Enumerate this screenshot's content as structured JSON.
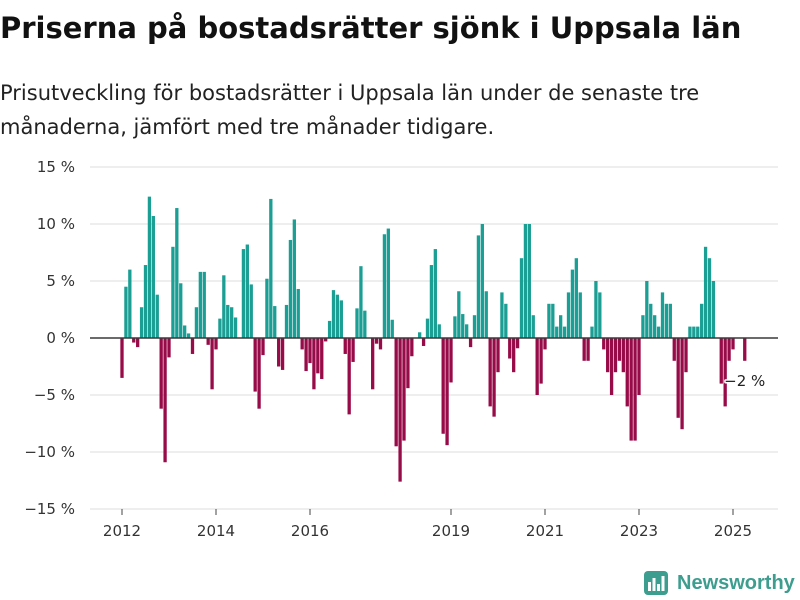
{
  "title": "Priserna på bostadsrätter sjönk i Uppsala län",
  "subtitle": "Prisutveckling för bostadsrätter i Uppsala län under de senaste tre månaderna, jämfört med tre månader tidigare.",
  "logo": {
    "text": "Newsworthy",
    "icon": "newsworthy-logo-icon"
  },
  "colors": {
    "positive": "#1b9e94",
    "negative": "#980b49",
    "logo": "#3d9d8f",
    "title": "#111111",
    "text": "#222222",
    "zero_line": "#3a3a3a",
    "grid": "#dedede"
  },
  "chart_data": {
    "type": "bar",
    "title": "Priserna på bostadsrätter sjönk i Uppsala län",
    "xlabel": "",
    "ylabel": "",
    "grid": true,
    "ylim": [
      -15,
      15
    ],
    "y_ticks": [
      {
        "value": 15,
        "label": "15 %"
      },
      {
        "value": 10,
        "label": "10 %"
      },
      {
        "value": 5,
        "label": "5 %"
      },
      {
        "value": 0,
        "label": "0 %"
      },
      {
        "value": -5,
        "label": "−5 %"
      },
      {
        "value": -10,
        "label": "−10 %"
      },
      {
        "value": -15,
        "label": "−15 %"
      }
    ],
    "x_ticks": [
      {
        "value": "2012-01",
        "label": "2012"
      },
      {
        "value": "2014-01",
        "label": "2014"
      },
      {
        "value": "2016-01",
        "label": "2016"
      },
      {
        "value": "2019-01",
        "label": "2019"
      },
      {
        "value": "2021-01",
        "label": "2021"
      },
      {
        "value": "2023-01",
        "label": "2023"
      },
      {
        "value": "2025-01",
        "label": "2025"
      }
    ],
    "x": [
      "2012-01",
      "2012-02",
      "2012-03",
      "2012-04",
      "2012-05",
      "2012-06",
      "2012-07",
      "2012-08",
      "2012-09",
      "2012-10",
      "2012-11",
      "2012-12",
      "2013-01",
      "2013-02",
      "2013-03",
      "2013-04",
      "2013-05",
      "2013-06",
      "2013-07",
      "2013-08",
      "2013-09",
      "2013-10",
      "2013-11",
      "2013-12",
      "2014-01",
      "2014-02",
      "2014-03",
      "2014-04",
      "2014-05",
      "2014-06",
      "2014-07",
      "2014-08",
      "2014-09",
      "2014-10",
      "2014-11",
      "2014-12",
      "2015-01",
      "2015-02",
      "2015-03",
      "2015-04",
      "2015-05",
      "2015-06",
      "2015-07",
      "2015-08",
      "2015-09",
      "2015-10",
      "2015-11",
      "2015-12",
      "2016-01",
      "2016-02",
      "2016-03",
      "2016-04",
      "2016-05",
      "2016-06",
      "2016-07",
      "2016-08",
      "2016-09",
      "2016-10",
      "2016-11",
      "2016-12",
      "2017-01",
      "2017-02",
      "2017-03",
      "2017-04",
      "2017-05",
      "2017-06",
      "2017-07",
      "2017-08",
      "2017-09",
      "2017-10",
      "2017-11",
      "2017-12",
      "2018-01",
      "2018-02",
      "2018-03",
      "2018-04",
      "2018-05",
      "2018-06",
      "2018-07",
      "2018-08",
      "2018-09",
      "2018-10",
      "2018-11",
      "2018-12",
      "2019-01",
      "2019-02",
      "2019-03",
      "2019-04",
      "2019-05",
      "2019-06",
      "2019-07",
      "2019-08",
      "2019-09",
      "2019-10",
      "2019-11",
      "2019-12",
      "2020-01",
      "2020-02",
      "2020-03",
      "2020-04",
      "2020-05",
      "2020-06",
      "2020-07",
      "2020-08",
      "2020-09",
      "2020-10",
      "2020-11",
      "2020-12",
      "2021-01",
      "2021-02",
      "2021-03",
      "2021-04",
      "2021-05",
      "2021-06",
      "2021-07",
      "2021-08",
      "2021-09",
      "2021-10",
      "2021-11",
      "2021-12",
      "2022-01",
      "2022-02",
      "2022-03",
      "2022-04",
      "2022-05",
      "2022-06",
      "2022-07",
      "2022-08",
      "2022-09",
      "2022-10",
      "2022-11",
      "2022-12",
      "2023-01",
      "2023-02",
      "2023-03",
      "2023-04",
      "2023-05",
      "2023-06",
      "2023-07",
      "2023-08",
      "2023-09",
      "2023-10",
      "2023-11",
      "2023-12",
      "2024-01",
      "2024-02",
      "2024-03",
      "2024-04",
      "2024-05",
      "2024-06",
      "2024-07",
      "2024-08",
      "2024-09",
      "2024-10",
      "2024-11",
      "2024-12",
      "2025-01",
      "2025-02",
      "2025-03",
      "2025-04"
    ],
    "values": [
      -3.5,
      4.5,
      6.0,
      -0.4,
      -0.8,
      2.7,
      6.4,
      12.4,
      10.7,
      3.8,
      -6.2,
      -10.9,
      -1.7,
      8.0,
      11.4,
      4.8,
      1.1,
      0.4,
      -1.4,
      2.7,
      5.8,
      5.8,
      -0.6,
      -4.5,
      -1.0,
      1.7,
      5.5,
      2.9,
      2.7,
      1.8,
      null,
      7.8,
      8.2,
      4.7,
      -4.7,
      -6.2,
      -1.5,
      5.2,
      12.2,
      2.8,
      -2.5,
      -2.8,
      2.9,
      8.6,
      10.4,
      4.3,
      -1.0,
      -2.9,
      -2.2,
      -4.5,
      -3.1,
      -3.6,
      -0.3,
      1.5,
      4.2,
      3.8,
      3.3,
      -1.4,
      -6.7,
      -2.1,
      2.6,
      6.3,
      2.4,
      null,
      -4.5,
      -0.5,
      -1.0,
      9.1,
      9.6,
      1.6,
      -9.5,
      -12.6,
      -9.0,
      -4.4,
      -1.6,
      null,
      0.5,
      -0.7,
      1.7,
      6.4,
      7.8,
      1.2,
      -8.4,
      -9.4,
      -3.9,
      1.9,
      4.1,
      2.1,
      1.2,
      -0.8,
      2.0,
      9.0,
      10.0,
      4.1,
      -6.0,
      -6.9,
      -3.0,
      4.0,
      3.0,
      -1.8,
      -3.0,
      -0.9,
      7.0,
      10.0,
      10.0,
      2.0,
      -5.0,
      -4.0,
      -1.0,
      3.0,
      3.0,
      1.0,
      2.0,
      1.0,
      4.0,
      6.0,
      7.0,
      4.0,
      -2.0,
      -2.0,
      1.0,
      5.0,
      4.0,
      -1.0,
      -3.0,
      -5.0,
      -3.0,
      -2.0,
      -3.0,
      -6.0,
      -9.0,
      -9.0,
      -5.0,
      2.0,
      5.0,
      3.0,
      2.0,
      1.0,
      4.0,
      3.0,
      3.0,
      -2.0,
      -7.0,
      -8.0,
      -3.0,
      1.0,
      1.0,
      1.0,
      3.0,
      8.0,
      7.0,
      5.0,
      null,
      -4.0,
      -6.0,
      -2.0,
      -1.0,
      null,
      null,
      -2.0
    ],
    "annotation": {
      "x": "2025-04",
      "label": "−2 %"
    }
  }
}
